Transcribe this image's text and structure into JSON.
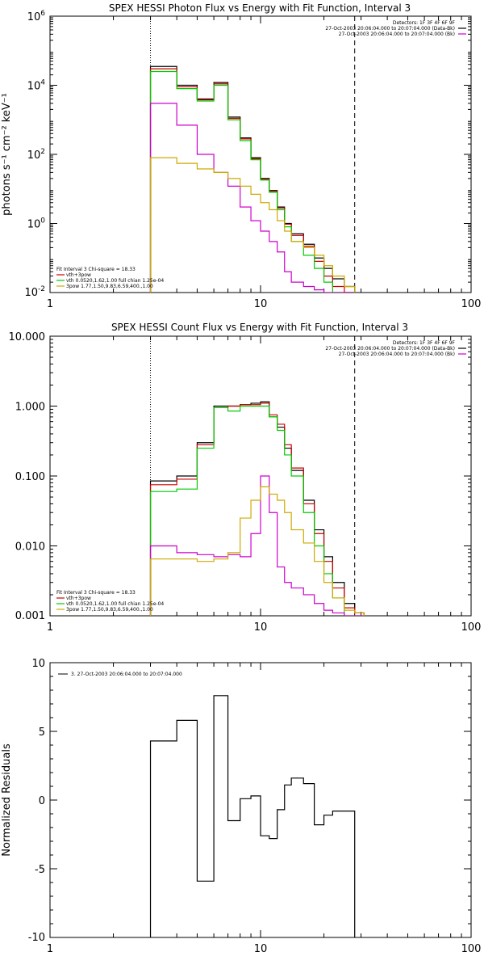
{
  "chart_data": [
    {
      "type": "line",
      "title": "SPEX HESSI Photon Flux vs Energy with Fit Function, Interval 3",
      "ylabel": "photons s⁻¹ cm⁻² keV⁻¹",
      "xscale": "log",
      "yscale": "log",
      "xlim": [
        1,
        100
      ],
      "ylim": [
        0.01,
        1000000
      ],
      "x_ticks": [
        "1",
        "10",
        "100"
      ],
      "y_ticks": [
        {
          "value": 0.01,
          "base": "10",
          "exp": "-2"
        },
        {
          "value": 1,
          "base": "10",
          "exp": "0"
        },
        {
          "value": 100,
          "base": "10",
          "exp": "2"
        },
        {
          "value": 10000,
          "base": "10",
          "exp": "4"
        },
        {
          "value": 1000000,
          "base": "10",
          "exp": "6"
        }
      ],
      "vlines": [
        {
          "x": 3,
          "style": "dotted"
        },
        {
          "x": 28,
          "style": "dashed"
        }
      ],
      "legend_topright": [
        "Detectors: 1F 3F 4F 6F 9F",
        "27-Oct-2003 20:06:04.000 to 20:07:04.000 (Data-Bk)",
        "27-Oct-2003 20:06:04.000 to 20:07:04.000 (Bk)"
      ],
      "legend_topright_colors": [
        "#000000",
        "#000000",
        "#cc00cc"
      ],
      "legend_bottomleft": [
        "Fit Interval 3   Chi-square = 18.33",
        "vth+3pow",
        "vth 0.0520,1.62,1.00  full chian 1.25e-04",
        "3pow 1.77,1.50,9.83,6.59,400.,1.00"
      ],
      "legend_bottomleft_colors": [
        "#000000",
        "#cc0000",
        "#00cc00",
        "#ccaa00"
      ],
      "edges": [
        3,
        4,
        5,
        6,
        7,
        8,
        9,
        10,
        11,
        12,
        13,
        14,
        16,
        18,
        20,
        22,
        25,
        28
      ],
      "series": [
        {
          "color": "#000000",
          "values": [
            35000,
            10000,
            4000,
            12000,
            1200,
            300,
            80,
            20,
            9,
            3,
            1,
            0.5,
            0.25,
            0.1,
            0.05,
            0.025,
            0.015
          ]
        },
        {
          "color": "#cc0000",
          "values": [
            30000,
            9000,
            3800,
            11000,
            1100,
            280,
            75,
            19,
            8.5,
            2.8,
            0.95,
            0.45,
            0.22,
            0.08,
            0.03,
            0.015,
            0.008
          ]
        },
        {
          "color": "#00cc00",
          "values": [
            25000,
            8000,
            3500,
            10000,
            1000,
            250,
            70,
            18,
            8,
            2.5,
            0.8,
            0.3,
            0.12,
            0.05,
            0.02,
            0.01,
            0.006
          ]
        },
        {
          "color": "#cc00cc",
          "values": [
            3000,
            700,
            100,
            30,
            12,
            3,
            1.2,
            0.6,
            0.3,
            0.15,
            0.04,
            0.02,
            0.015,
            0.012,
            0.01,
            0.008,
            0.006
          ]
        },
        {
          "color": "#ccaa00",
          "values": [
            80,
            55,
            38,
            30,
            20,
            12,
            7,
            4,
            2.5,
            1.2,
            0.6,
            0.3,
            0.2,
            0.12,
            0.06,
            0.03,
            0.015
          ]
        }
      ]
    },
    {
      "type": "line",
      "title": "SPEX HESSI Count Flux vs Energy with Fit Function, Interval 3",
      "ylabel": "",
      "xscale": "log",
      "yscale": "log",
      "xlim": [
        1,
        100
      ],
      "ylim": [
        0.001,
        10
      ],
      "x_ticks": [
        "1",
        "10",
        "100"
      ],
      "y_ticks": [
        {
          "value": 0.001,
          "label": "0.001"
        },
        {
          "value": 0.01,
          "label": "0.010"
        },
        {
          "value": 0.1,
          "label": "0.100"
        },
        {
          "value": 1,
          "label": "1.000"
        },
        {
          "value": 10,
          "label": "10.000"
        }
      ],
      "vlines": [
        {
          "x": 3,
          "style": "dotted"
        },
        {
          "x": 28,
          "style": "dashed"
        }
      ],
      "legend_topright": [
        "Detectors: 1F 3F 4F 6F 9F",
        "27-Oct-2003 20:06:04.000 to 20:07:04.000 (Data-Bk)",
        "27-Oct-2003 20:06:04.000 to 20:07:04.000 (Bk)"
      ],
      "legend_topright_colors": [
        "#000000",
        "#000000",
        "#cc00cc"
      ],
      "legend_bottomleft": [
        "Fit Interval 3   Chi-square = 18.33",
        "vth+3pow",
        "vth 0.0520,1.62,1.00  full chian 1.25e-04",
        "3pow 1.77,1.50,9.83,6.59,400.,1.00"
      ],
      "legend_bottomleft_colors": [
        "#000000",
        "#cc0000",
        "#00cc00",
        "#ccaa00"
      ],
      "edges": [
        3,
        4,
        5,
        6,
        7,
        8,
        9,
        10,
        11,
        12,
        13,
        14,
        16,
        18,
        20,
        22,
        25,
        28,
        31
      ],
      "series": [
        {
          "color": "#000000",
          "values": [
            0.085,
            0.1,
            0.3,
            1.0,
            1.0,
            1.05,
            1.1,
            1.15,
            0.7,
            0.5,
            0.25,
            0.12,
            0.045,
            0.017,
            0.007,
            0.003,
            0.0015,
            0.0011
          ]
        },
        {
          "color": "#cc0000",
          "values": [
            0.075,
            0.09,
            0.28,
            0.95,
            1.0,
            1.05,
            1.05,
            1.1,
            0.75,
            0.55,
            0.28,
            0.13,
            0.04,
            0.015,
            0.006,
            0.0025,
            0.0013,
            0.0011
          ]
        },
        {
          "color": "#00cc00",
          "values": [
            0.06,
            0.065,
            0.25,
            0.95,
            0.85,
            1.0,
            1.0,
            1.0,
            0.7,
            0.45,
            0.2,
            0.1,
            0.03,
            0.01,
            0.004,
            0.0018,
            0.001,
            0.001
          ]
        },
        {
          "color": "#cc00cc",
          "values": [
            0.01,
            0.008,
            0.0075,
            0.007,
            0.0075,
            0.007,
            0.015,
            0.1,
            0.03,
            0.005,
            0.003,
            0.0025,
            0.002,
            0.0015,
            0.0012,
            0.0011,
            0.001,
            0.001
          ]
        },
        {
          "color": "#ccaa00",
          "values": [
            0.0065,
            0.0065,
            0.006,
            0.0065,
            0.008,
            0.025,
            0.045,
            0.07,
            0.055,
            0.045,
            0.03,
            0.017,
            0.011,
            0.006,
            0.003,
            0.0018,
            0.0012,
            0.0011
          ]
        }
      ]
    },
    {
      "type": "line",
      "title": "",
      "ylabel": "Normalized Residuals",
      "xscale": "log",
      "yscale": "linear",
      "xlim": [
        1,
        100
      ],
      "ylim": [
        -10,
        10
      ],
      "x_ticks": [
        "1",
        "10",
        "100"
      ],
      "y_ticks": [
        {
          "value": -10,
          "label": "-10"
        },
        {
          "value": -5,
          "label": "-5"
        },
        {
          "value": 0,
          "label": "0"
        },
        {
          "value": 5,
          "label": "5"
        },
        {
          "value": 10,
          "label": "10"
        }
      ],
      "legend_topleft": [
        "3. 27-Oct-2003 20:06:04.000 to 20:07:04.000"
      ],
      "edges": [
        3,
        4,
        5,
        6,
        7,
        8,
        9,
        10,
        11,
        12,
        13,
        14,
        16,
        18,
        20,
        22,
        25,
        28
      ],
      "series": [
        {
          "color": "#000000",
          "values": [
            4.3,
            5.8,
            -5.9,
            7.6,
            -1.5,
            0.1,
            0.3,
            -2.6,
            -2.8,
            -0.7,
            1.1,
            1.6,
            1.2,
            -1.8,
            -1.1,
            -0.8,
            -0.8
          ]
        }
      ]
    }
  ]
}
